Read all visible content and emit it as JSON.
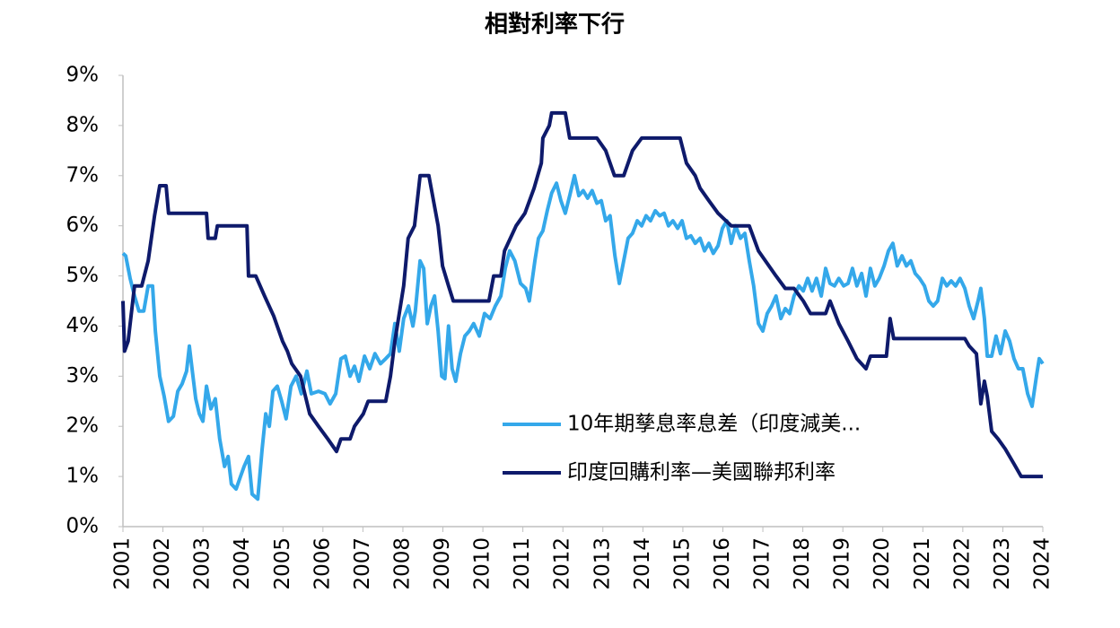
{
  "chart_data": {
    "type": "line",
    "title": "相對利率下行",
    "xlim": [
      2001,
      2024
    ],
    "xticks": [
      2001,
      2002,
      2003,
      2004,
      2005,
      2006,
      2007,
      2008,
      2009,
      2010,
      2011,
      2012,
      2013,
      2014,
      2015,
      2016,
      2017,
      2018,
      2019,
      2020,
      2021,
      2022,
      2023,
      2024
    ],
    "ylim": [
      0,
      9
    ],
    "yticks": [
      {
        "value": 0,
        "label": "0%"
      },
      {
        "value": 1,
        "label": "1%"
      },
      {
        "value": 2,
        "label": "2%"
      },
      {
        "value": 3,
        "label": "3%"
      },
      {
        "value": 4,
        "label": "4%"
      },
      {
        "value": 5,
        "label": "5%"
      },
      {
        "value": 6,
        "label": "6%"
      },
      {
        "value": 7,
        "label": "7%"
      },
      {
        "value": 8,
        "label": "8%"
      },
      {
        "value": 9,
        "label": "9%"
      }
    ],
    "grid": false,
    "series": [
      {
        "name": "10年期孳息率息差（印度減美...",
        "color": "#34a8ea",
        "x": [
          2001.0,
          2001.07,
          2001.18,
          2001.29,
          2001.4,
          2001.52,
          2001.63,
          2001.74,
          2001.81,
          2001.92,
          2002.03,
          2002.14,
          2002.26,
          2002.37,
          2002.48,
          2002.59,
          2002.66,
          2002.75,
          2002.82,
          2002.91,
          2003.0,
          2003.09,
          2003.2,
          2003.31,
          2003.42,
          2003.54,
          2003.63,
          2003.71,
          2003.83,
          2003.94,
          2004.03,
          2004.14,
          2004.23,
          2004.37,
          2004.48,
          2004.57,
          2004.66,
          2004.75,
          2004.86,
          2004.97,
          2005.08,
          2005.2,
          2005.33,
          2005.46,
          2005.6,
          2005.71,
          2005.89,
          2006.05,
          2006.18,
          2006.32,
          2006.45,
          2006.56,
          2006.68,
          2006.79,
          2006.9,
          2007.04,
          2007.17,
          2007.3,
          2007.44,
          2007.57,
          2007.69,
          2007.8,
          2007.91,
          2008.02,
          2008.14,
          2008.25,
          2008.31,
          2008.43,
          2008.52,
          2008.61,
          2008.7,
          2008.79,
          2008.88,
          2008.97,
          2009.05,
          2009.14,
          2009.23,
          2009.32,
          2009.44,
          2009.55,
          2009.66,
          2009.77,
          2009.91,
          2010.04,
          2010.18,
          2010.31,
          2010.45,
          2010.56,
          2010.67,
          2010.8,
          2010.94,
          2011.07,
          2011.16,
          2011.3,
          2011.39,
          2011.5,
          2011.61,
          2011.72,
          2011.84,
          2011.95,
          2012.06,
          2012.17,
          2012.29,
          2012.4,
          2012.51,
          2012.62,
          2012.73,
          2012.85,
          2012.96,
          2013.07,
          2013.18,
          2013.3,
          2013.41,
          2013.52,
          2013.63,
          2013.74,
          2013.86,
          2013.97,
          2014.08,
          2014.19,
          2014.31,
          2014.42,
          2014.53,
          2014.64,
          2014.75,
          2014.87,
          2014.98,
          2015.09,
          2015.2,
          2015.31,
          2015.43,
          2015.54,
          2015.65,
          2015.76,
          2015.88,
          2015.99,
          2016.1,
          2016.21,
          2016.32,
          2016.44,
          2016.55,
          2016.66,
          2016.77,
          2016.89,
          2017.0,
          2017.11,
          2017.22,
          2017.33,
          2017.45,
          2017.56,
          2017.67,
          2017.78,
          2017.9,
          2018.01,
          2018.12,
          2018.23,
          2018.34,
          2018.46,
          2018.57,
          2018.68,
          2018.79,
          2018.9,
          2019.02,
          2019.13,
          2019.24,
          2019.35,
          2019.47,
          2019.58,
          2019.69,
          2019.8,
          2019.91,
          2020.03,
          2020.14,
          2020.25,
          2020.36,
          2020.48,
          2020.59,
          2020.7,
          2020.81,
          2020.92,
          2021.04,
          2021.15,
          2021.26,
          2021.37,
          2021.49,
          2021.6,
          2021.71,
          2021.82,
          2021.93,
          2022.05,
          2022.16,
          2022.27,
          2022.38,
          2022.45,
          2022.54,
          2022.61,
          2022.72,
          2022.83,
          2022.94,
          2023.06,
          2023.17,
          2023.28,
          2023.39,
          2023.5,
          2023.62,
          2023.73,
          2023.84,
          2023.91,
          2024.0
        ],
        "values": [
          5.45,
          5.4,
          4.95,
          4.6,
          4.3,
          4.3,
          4.8,
          4.8,
          3.9,
          3.0,
          2.6,
          2.1,
          2.2,
          2.7,
          2.85,
          3.1,
          3.6,
          3.0,
          2.55,
          2.25,
          2.1,
          2.8,
          2.35,
          2.55,
          1.75,
          1.2,
          1.4,
          0.85,
          0.75,
          1.0,
          1.2,
          1.4,
          0.65,
          0.55,
          1.55,
          2.25,
          2.0,
          2.7,
          2.8,
          2.5,
          2.15,
          2.8,
          3.0,
          2.65,
          3.1,
          2.65,
          2.7,
          2.65,
          2.45,
          2.65,
          3.35,
          3.4,
          3.0,
          3.2,
          2.9,
          3.4,
          3.15,
          3.45,
          3.25,
          3.35,
          3.45,
          4.05,
          3.5,
          4.15,
          4.4,
          4.0,
          4.3,
          5.3,
          5.15,
          4.05,
          4.4,
          4.6,
          3.9,
          3.0,
          2.95,
          4.0,
          3.15,
          2.9,
          3.45,
          3.8,
          3.9,
          4.05,
          3.8,
          4.25,
          4.15,
          4.4,
          4.6,
          5.15,
          5.5,
          5.3,
          4.85,
          4.75,
          4.5,
          5.3,
          5.75,
          5.9,
          6.3,
          6.65,
          6.85,
          6.5,
          6.25,
          6.6,
          7.0,
          6.6,
          6.7,
          6.55,
          6.7,
          6.45,
          6.5,
          6.1,
          6.2,
          5.4,
          4.85,
          5.3,
          5.75,
          5.85,
          6.1,
          6.0,
          6.2,
          6.1,
          6.3,
          6.2,
          6.25,
          6.0,
          6.1,
          5.95,
          6.1,
          5.75,
          5.8,
          5.65,
          5.75,
          5.5,
          5.65,
          5.45,
          5.6,
          5.95,
          6.1,
          5.65,
          6.0,
          5.75,
          5.85,
          5.3,
          4.8,
          4.05,
          3.9,
          4.25,
          4.4,
          4.6,
          4.15,
          4.35,
          4.25,
          4.6,
          4.8,
          4.7,
          4.95,
          4.7,
          4.95,
          4.6,
          5.15,
          4.85,
          4.8,
          4.95,
          4.8,
          4.85,
          5.15,
          4.8,
          5.05,
          4.6,
          5.15,
          4.8,
          4.95,
          5.2,
          5.5,
          5.65,
          5.2,
          5.4,
          5.2,
          5.3,
          5.05,
          4.95,
          4.8,
          4.5,
          4.4,
          4.5,
          4.95,
          4.8,
          4.9,
          4.8,
          4.95,
          4.75,
          4.4,
          4.15,
          4.5,
          4.75,
          4.15,
          3.4,
          3.4,
          3.8,
          3.45,
          3.9,
          3.7,
          3.35,
          3.15,
          3.15,
          2.65,
          2.4,
          3.0,
          3.35,
          3.25
        ]
      },
      {
        "name": "印度回購利率—美國聯邦利率",
        "color": "#0e1a6b",
        "x": [
          2001.0,
          2001.04,
          2001.13,
          2001.29,
          2001.47,
          2001.63,
          2001.79,
          2001.92,
          2002.08,
          2002.14,
          2003.09,
          2003.13,
          2003.31,
          2003.36,
          2004.1,
          2004.14,
          2004.32,
          2004.54,
          2004.77,
          2004.99,
          2005.11,
          2005.22,
          2005.44,
          2005.67,
          2005.89,
          2006.12,
          2006.34,
          2006.45,
          2006.68,
          2006.79,
          2007.01,
          2007.13,
          2007.57,
          2007.69,
          2007.8,
          2008.02,
          2008.13,
          2008.29,
          2008.43,
          2008.65,
          2008.88,
          2008.99,
          2009.14,
          2009.26,
          2010.15,
          2010.27,
          2010.45,
          2010.54,
          2010.83,
          2011.05,
          2011.28,
          2011.46,
          2011.5,
          2011.66,
          2011.72,
          2012.06,
          2012.17,
          2012.85,
          2013.07,
          2013.29,
          2013.52,
          2013.74,
          2013.97,
          2014.93,
          2015.09,
          2015.31,
          2015.43,
          2015.65,
          2015.88,
          2016.21,
          2016.66,
          2016.89,
          2017.11,
          2017.33,
          2017.56,
          2017.78,
          2018.01,
          2018.19,
          2018.57,
          2018.68,
          2018.9,
          2019.13,
          2019.35,
          2019.58,
          2019.69,
          2020.09,
          2020.18,
          2020.27,
          2022.05,
          2022.16,
          2022.34,
          2022.45,
          2022.54,
          2022.61,
          2022.72,
          2022.88,
          2023.06,
          2023.28,
          2023.46,
          2024.0
        ],
        "values": [
          4.5,
          3.5,
          3.7,
          4.8,
          4.8,
          5.3,
          6.2,
          6.8,
          6.8,
          6.25,
          6.25,
          5.75,
          5.75,
          6.0,
          6.0,
          5.0,
          5.0,
          4.6,
          4.2,
          3.7,
          3.5,
          3.25,
          3.0,
          2.25,
          2.0,
          1.75,
          1.5,
          1.75,
          1.75,
          2.0,
          2.25,
          2.5,
          2.5,
          3.0,
          3.7,
          4.8,
          5.75,
          6.0,
          7.0,
          7.0,
          6.0,
          5.2,
          4.8,
          4.5,
          4.5,
          5.0,
          5.0,
          5.5,
          6.0,
          6.25,
          6.75,
          7.25,
          7.75,
          8.0,
          8.25,
          8.25,
          7.75,
          7.75,
          7.5,
          7.0,
          7.0,
          7.5,
          7.75,
          7.75,
          7.25,
          7.0,
          6.75,
          6.5,
          6.25,
          6.0,
          6.0,
          5.5,
          5.25,
          5.0,
          4.75,
          4.75,
          4.5,
          4.25,
          4.25,
          4.5,
          4.05,
          3.7,
          3.35,
          3.15,
          3.4,
          3.4,
          4.15,
          3.75,
          3.75,
          3.6,
          3.45,
          2.45,
          2.9,
          2.6,
          1.9,
          1.75,
          1.55,
          1.25,
          1.0,
          1.0
        ]
      }
    ]
  }
}
